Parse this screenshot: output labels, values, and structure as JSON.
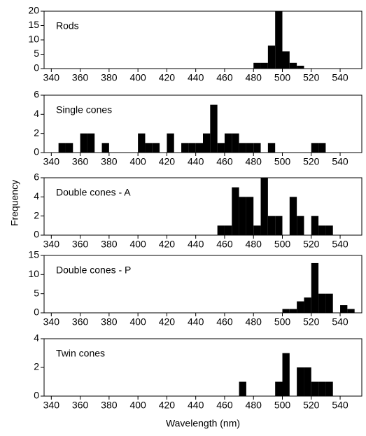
{
  "chart_data": [
    {
      "type": "histogram",
      "title": "Rods",
      "color": "#000000",
      "bins": [
        480,
        485,
        490,
        495,
        500,
        505,
        510,
        515
      ],
      "values": [
        2,
        2,
        8,
        20,
        6,
        2,
        1
      ],
      "xlim": [
        335,
        555
      ],
      "xticks": [
        340,
        360,
        380,
        400,
        420,
        440,
        460,
        480,
        500,
        520,
        540
      ],
      "ylim": [
        0,
        20
      ],
      "yticks": [
        0,
        5,
        10,
        15,
        20
      ]
    },
    {
      "type": "histogram",
      "title": "Single cones",
      "color": "#000000",
      "bins": [
        345,
        350,
        355,
        360,
        365,
        370,
        375,
        380,
        385,
        390,
        395,
        400,
        405,
        410,
        415,
        420,
        425,
        430,
        435,
        440,
        445,
        450,
        455,
        460,
        465,
        470,
        475,
        480,
        485,
        490,
        495,
        500,
        505,
        510,
        515,
        520,
        525,
        530
      ],
      "values": [
        1,
        1,
        0,
        2,
        2,
        0,
        1,
        0,
        0,
        0,
        0,
        2,
        1,
        1,
        0,
        2,
        0,
        1,
        1,
        1,
        2,
        5,
        1,
        2,
        2,
        1,
        1,
        1,
        0,
        1,
        0,
        0,
        0,
        0,
        0,
        1,
        1
      ],
      "xlim": [
        335,
        555
      ],
      "xticks": [
        340,
        360,
        380,
        400,
        420,
        440,
        460,
        480,
        500,
        520,
        540
      ],
      "ylim": [
        0,
        6
      ],
      "yticks": [
        0,
        2,
        4,
        6
      ]
    },
    {
      "type": "histogram",
      "title": "Double cones - A",
      "color": "#000000",
      "ylabel": "Frequency",
      "bins": [
        455,
        460,
        465,
        470,
        475,
        480,
        485,
        490,
        495,
        500,
        505,
        510,
        515,
        520,
        525,
        530,
        535
      ],
      "values": [
        1,
        1,
        5,
        4,
        4,
        1,
        6,
        2,
        2,
        0,
        4,
        2,
        0,
        2,
        1,
        1
      ],
      "xlim": [
        335,
        555
      ],
      "xticks": [
        340,
        360,
        380,
        400,
        420,
        440,
        460,
        480,
        500,
        520,
        540
      ],
      "ylim": [
        0,
        6
      ],
      "yticks": [
        0,
        2,
        4,
        6
      ]
    },
    {
      "type": "histogram",
      "title": "Double cones - P",
      "color": "#000000",
      "bins": [
        500,
        505,
        510,
        515,
        520,
        525,
        530,
        535,
        540,
        545,
        550
      ],
      "values": [
        1,
        1,
        3,
        4,
        13,
        5,
        5,
        0,
        2,
        1
      ],
      "xlim": [
        335,
        555
      ],
      "xticks": [
        340,
        360,
        380,
        400,
        420,
        440,
        460,
        480,
        500,
        520,
        540
      ],
      "ylim": [
        0,
        15
      ],
      "yticks": [
        0,
        5,
        10,
        15
      ]
    },
    {
      "type": "histogram",
      "title": "Twin cones",
      "color": "#000000",
      "xlabel": "Wavelength (nm)",
      "bins": [
        470,
        475,
        480,
        485,
        490,
        495,
        500,
        505,
        510,
        515,
        520,
        525,
        530,
        535
      ],
      "values": [
        1,
        0,
        0,
        0,
        0,
        1,
        3,
        0,
        2,
        2,
        1,
        1,
        1
      ],
      "xlim": [
        335,
        555
      ],
      "xticks": [
        340,
        360,
        380,
        400,
        420,
        440,
        460,
        480,
        500,
        520,
        540
      ],
      "ylim": [
        0,
        4
      ],
      "yticks": [
        0,
        2,
        4
      ]
    }
  ]
}
